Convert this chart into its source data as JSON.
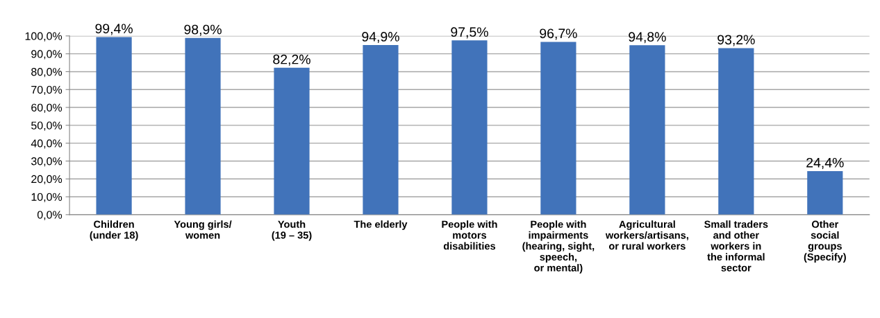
{
  "chart_data": {
    "type": "bar",
    "categories": [
      "Children\n(under 18)",
      "Young girls/\nwomen",
      "Youth\n(19 – 35)",
      "The elderly",
      "People with\nmotors\ndisabilities",
      "People with\nimpairments\n(hearing, sight,\nspeech,\nor mental)",
      "Agricultural\nworkers/artisans,\nor rural workers",
      "Small traders\nand other\nworkers in\nthe informal\nsector",
      "Other\nsocial\ngroups\n(Specify)"
    ],
    "values": [
      99.4,
      98.9,
      82.2,
      94.9,
      97.5,
      96.7,
      94.8,
      93.2,
      24.4
    ],
    "value_labels": [
      "99,4%",
      "98,9%",
      "82,2%",
      "94,9%",
      "97,5%",
      "96,7%",
      "94,8%",
      "93,2%",
      "24,4%"
    ],
    "color": "#4173ba",
    "ylim": [
      0,
      100
    ],
    "yticks": [
      {
        "value": 0,
        "label": "0,0%"
      },
      {
        "value": 10,
        "label": "10,0%"
      },
      {
        "value": 20,
        "label": "20,0%"
      },
      {
        "value": 30,
        "label": "30,0%"
      },
      {
        "value": 40,
        "label": "40,0%"
      },
      {
        "value": 50,
        "label": "50,0%"
      },
      {
        "value": 60,
        "label": "60,0%"
      },
      {
        "value": 70,
        "label": "70,0%"
      },
      {
        "value": 80,
        "label": "80,0%"
      },
      {
        "value": 90,
        "label": "90,0%"
      },
      {
        "value": 100,
        "label": "100,0%"
      }
    ],
    "grid": "y"
  }
}
